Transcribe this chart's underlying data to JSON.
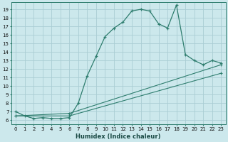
{
  "xlabel": "Humidex (Indice chaleur)",
  "bg_color": "#cce8ec",
  "grid_color": "#aacdd4",
  "line_color": "#2e7d6e",
  "xlim": [
    -0.5,
    23.5
  ],
  "ylim": [
    5.5,
    19.8
  ],
  "xticks": [
    0,
    1,
    2,
    3,
    4,
    5,
    6,
    7,
    8,
    9,
    10,
    11,
    12,
    13,
    14,
    15,
    16,
    17,
    18,
    19,
    20,
    21,
    22,
    23
  ],
  "yticks": [
    6,
    7,
    8,
    9,
    10,
    11,
    12,
    13,
    14,
    15,
    16,
    17,
    18,
    19
  ],
  "series1_x": [
    0,
    1,
    2,
    3,
    4,
    5,
    6,
    7,
    8,
    9,
    10,
    11,
    12,
    13,
    14,
    15,
    16,
    17,
    18,
    19,
    20,
    21,
    22,
    23
  ],
  "series1_y": [
    7.0,
    6.5,
    6.2,
    6.3,
    6.2,
    6.2,
    6.3,
    8.0,
    11.2,
    13.5,
    15.8,
    16.8,
    17.5,
    18.8,
    19.0,
    18.8,
    17.3,
    16.8,
    19.5,
    13.7,
    13.0,
    12.5,
    13.0,
    12.7
  ],
  "series2_x": [
    0,
    6,
    23
  ],
  "series2_y": [
    6.5,
    6.5,
    11.5
  ],
  "series3_x": [
    0,
    6,
    23
  ],
  "series3_y": [
    6.5,
    6.8,
    12.5
  ],
  "tick_fontsize": 5.0,
  "xlabel_fontsize": 6.0
}
